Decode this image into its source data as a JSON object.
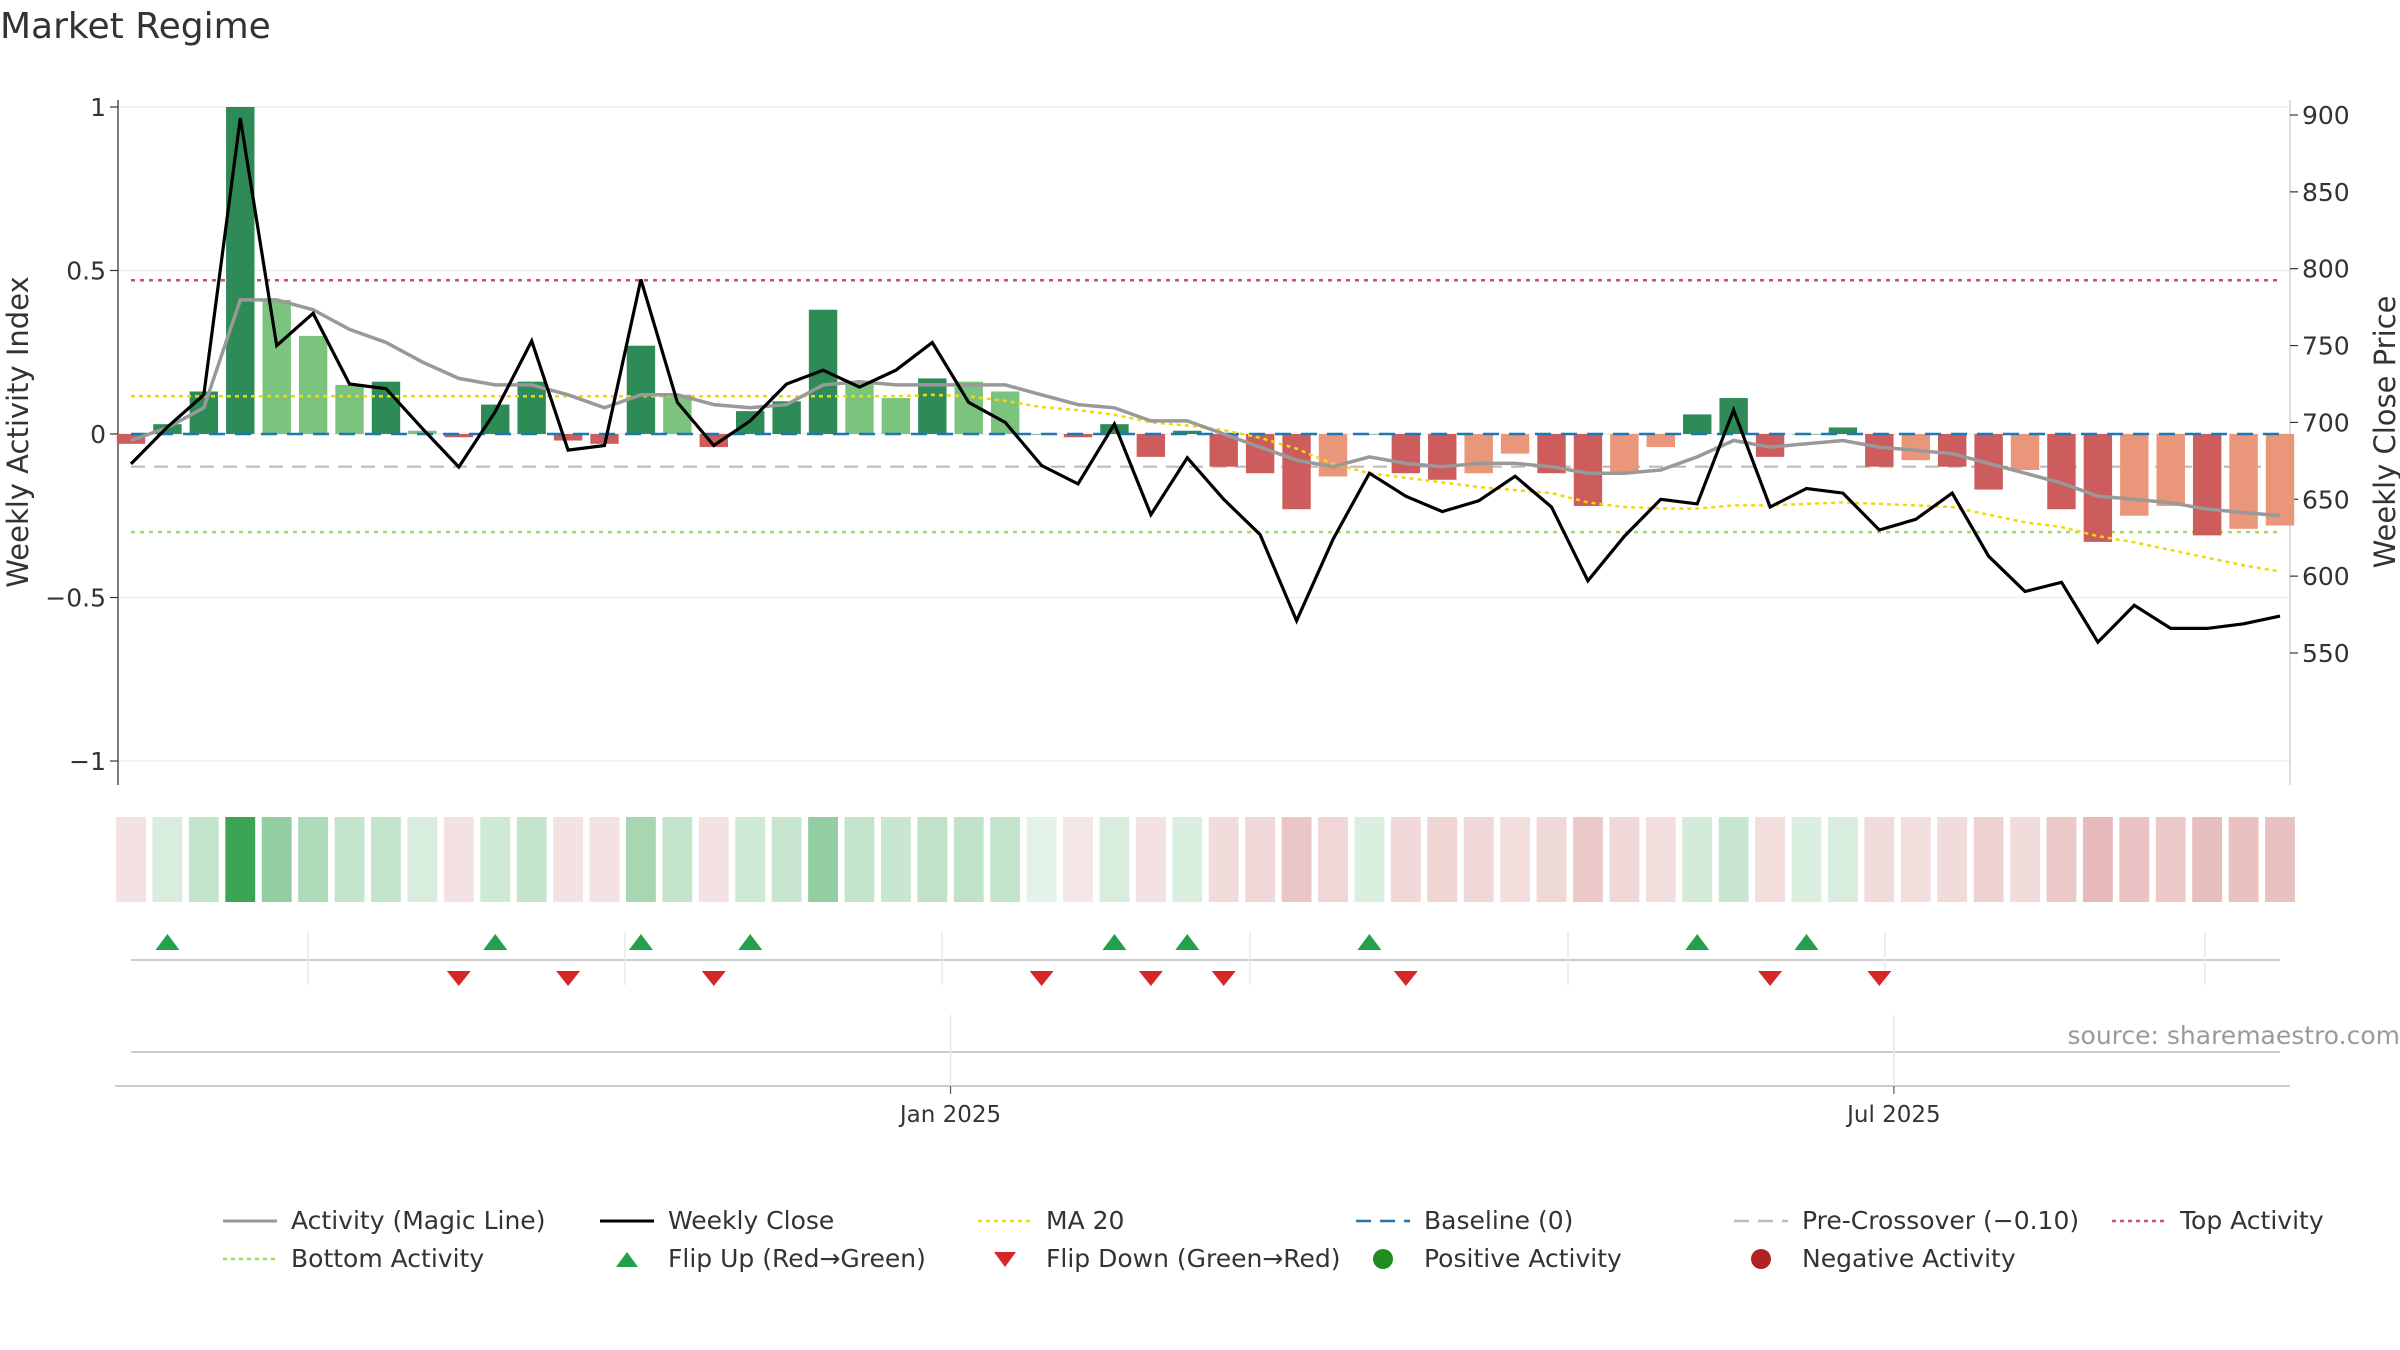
{
  "title": "Market Regime",
  "source": "source: sharemaestro.com",
  "colors": {
    "pos_dark": "#2e8b57",
    "pos_light": "#7cc47e",
    "neg_dark": "#cd5c5c",
    "neg_light": "#e9967a",
    "magic": "#999999",
    "close": "#000000",
    "ma20": "#f0d90a",
    "baseline": "#1f77b4",
    "precross": "#bbbbbb",
    "top": "#d9476f",
    "bottom": "#9be060",
    "flip_up": "#22a04a",
    "flip_down": "#d62728",
    "pos_dot": "#228b22",
    "neg_dot": "#b22222"
  },
  "chart_data": {
    "type": "bar",
    "title": "Market Regime",
    "ylabel": "Weekly Activity Index",
    "ylabel_right": "Weekly Close Price",
    "ylim": [
      -1.07,
      1.0
    ],
    "ylim_right": [
      552,
      904
    ],
    "yticks": [
      {
        "v": 1,
        "t": "1"
      },
      {
        "v": 0.5,
        "t": "0.5"
      },
      {
        "v": 0,
        "t": "0"
      },
      {
        "v": -0.5,
        "t": "−0.5"
      },
      {
        "v": -1,
        "t": "−1"
      }
    ],
    "yticks_right": [
      900,
      850,
      800,
      750,
      700,
      650,
      600,
      550
    ],
    "x_ticks": [
      {
        "label": "Jan 2025",
        "week": 22.5
      },
      {
        "label": "Jul 2025",
        "week": 48.4
      }
    ],
    "reference_lines": {
      "top": 0.47,
      "baseline": 0.0,
      "precross": -0.1,
      "bottom": -0.3
    },
    "activity": [
      -0.03,
      0.03,
      0.13,
      1.0,
      0.41,
      0.3,
      0.15,
      0.16,
      0.01,
      -0.01,
      0.09,
      0.16,
      -0.02,
      -0.03,
      0.27,
      0.12,
      -0.04,
      0.07,
      0.1,
      0.38,
      0.16,
      0.11,
      0.17,
      0.16,
      0.13,
      0.0,
      -0.01,
      0.03,
      -0.07,
      0.01,
      -0.1,
      -0.12,
      -0.23,
      -0.13,
      0.0,
      -0.12,
      -0.14,
      -0.12,
      -0.06,
      -0.12,
      -0.22,
      -0.12,
      -0.04,
      0.06,
      0.11,
      -0.07,
      0.0,
      0.02,
      -0.1,
      -0.08,
      -0.1,
      -0.17,
      -0.11,
      -0.23,
      -0.33,
      -0.25,
      -0.22,
      -0.31,
      -0.29,
      -0.28
    ],
    "activity_shade": [
      "dark",
      "dark",
      "dark",
      "dark",
      "light",
      "light",
      "light",
      "dark",
      "light",
      "dark",
      "dark",
      "dark",
      "dark",
      "dark",
      "dark",
      "light",
      "dark",
      "dark",
      "dark",
      "dark",
      "light",
      "light",
      "dark",
      "light",
      "light",
      "dark",
      "dark",
      "dark",
      "dark",
      "dark",
      "dark",
      "dark",
      "dark",
      "light",
      "dark",
      "dark",
      "dark",
      "light",
      "light",
      "dark",
      "dark",
      "light",
      "light",
      "dark",
      "dark",
      "dark",
      "dark",
      "dark",
      "dark",
      "light",
      "dark",
      "dark",
      "light",
      "dark",
      "dark",
      "light",
      "light",
      "dark",
      "light",
      "light"
    ],
    "magic_line": [
      -0.02,
      0.02,
      0.08,
      0.41,
      0.41,
      0.38,
      0.32,
      0.28,
      0.22,
      0.17,
      0.15,
      0.15,
      0.12,
      0.08,
      0.12,
      0.12,
      0.09,
      0.08,
      0.09,
      0.15,
      0.16,
      0.15,
      0.15,
      0.15,
      0.15,
      0.12,
      0.09,
      0.08,
      0.04,
      0.04,
      0.0,
      -0.04,
      -0.08,
      -0.1,
      -0.07,
      -0.09,
      -0.1,
      -0.09,
      -0.09,
      -0.1,
      -0.12,
      -0.12,
      -0.11,
      -0.07,
      -0.02,
      -0.04,
      -0.03,
      -0.02,
      -0.04,
      -0.05,
      -0.06,
      -0.09,
      -0.12,
      -0.15,
      -0.19,
      -0.2,
      -0.21,
      -0.23,
      -0.24,
      -0.25
    ],
    "weekly_close": [
      673,
      697,
      718,
      898,
      750,
      771,
      725,
      722,
      696,
      671,
      707,
      753,
      682,
      685,
      793,
      713,
      685,
      701,
      725,
      734,
      723,
      734,
      752,
      713,
      700,
      672,
      660,
      699,
      640,
      677,
      650,
      627,
      571,
      624,
      667,
      652,
      642,
      649,
      665,
      645,
      597,
      626,
      650,
      647,
      708,
      645,
      657,
      654,
      630,
      637,
      654,
      613,
      590,
      596,
      557,
      581,
      566,
      566,
      569,
      574
    ],
    "ma20": [
      717,
      717,
      717,
      717,
      717,
      717,
      717,
      717,
      717,
      717,
      717,
      717,
      717,
      717,
      717,
      717,
      717,
      717,
      717,
      717,
      717,
      717,
      718,
      717,
      714,
      710,
      708,
      705,
      700,
      698,
      695,
      690,
      683,
      673,
      667,
      664,
      661,
      658,
      656,
      654,
      648,
      645,
      644,
      644,
      646,
      646,
      647,
      648,
      647,
      646,
      645,
      640,
      635,
      632,
      626,
      622,
      617,
      612,
      607,
      603
    ],
    "strip_intensity": [
      0.18,
      0.2,
      0.3,
      1.0,
      0.55,
      0.4,
      0.3,
      0.3,
      0.2,
      0.18,
      0.25,
      0.3,
      0.18,
      0.18,
      0.45,
      0.3,
      0.18,
      0.25,
      0.28,
      0.55,
      0.3,
      0.28,
      0.32,
      0.32,
      0.3,
      0.15,
      0.15,
      0.2,
      0.18,
      0.18,
      0.22,
      0.24,
      0.35,
      0.25,
      0.18,
      0.24,
      0.26,
      0.24,
      0.2,
      0.24,
      0.33,
      0.24,
      0.2,
      0.22,
      0.28,
      0.2,
      0.18,
      0.2,
      0.22,
      0.2,
      0.22,
      0.28,
      0.22,
      0.33,
      0.42,
      0.36,
      0.33,
      0.4,
      0.38,
      0.38
    ],
    "flip_up_weeks": [
      1,
      10,
      14,
      17,
      27,
      29,
      34,
      43,
      46
    ],
    "flip_down_weeks": [
      9,
      12,
      16,
      25,
      28,
      30,
      35,
      45,
      48
    ],
    "legend": [
      {
        "key": "magic",
        "label": "Activity (Magic Line)",
        "symbol": "line"
      },
      {
        "key": "close",
        "label": "Weekly Close",
        "symbol": "line"
      },
      {
        "key": "ma20",
        "label": "MA 20",
        "symbol": "dotted"
      },
      {
        "key": "baseline",
        "label": "Baseline (0)",
        "symbol": "dashed"
      },
      {
        "key": "precross",
        "label": "Pre-Crossover (−0.10)",
        "symbol": "dashed"
      },
      {
        "key": "top",
        "label": "Top Activity",
        "symbol": "dotted"
      },
      {
        "key": "bottom",
        "label": "Bottom Activity",
        "symbol": "dotted"
      },
      {
        "key": "flip_up",
        "label": "Flip Up (Red→Green)",
        "symbol": "tri-up"
      },
      {
        "key": "flip_down",
        "label": "Flip Down (Green→Red)",
        "symbol": "tri-down"
      },
      {
        "key": "pos_dot",
        "label": "Positive Activity",
        "symbol": "dot"
      },
      {
        "key": "neg_dot",
        "label": "Negative Activity",
        "symbol": "dot"
      }
    ]
  }
}
